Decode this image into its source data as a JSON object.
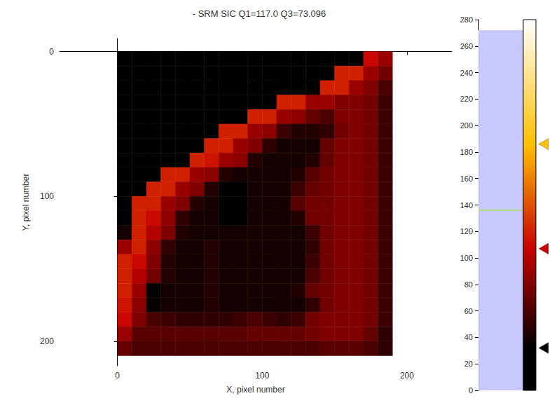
{
  "chart_data": {
    "type": "heatmap",
    "title": "- SRM SIC Q1=117.0 Q3=73.096",
    "x_label": "X, pixel number",
    "y_label": "Y, pixel number",
    "xlim": [
      -40,
      231
    ],
    "xticks": [
      0,
      100,
      200
    ],
    "ylim": [
      -9,
      217
    ],
    "yticks": [
      0,
      100,
      200
    ],
    "grid": false,
    "x": [
      5,
      15,
      25,
      35,
      45,
      55,
      65,
      75,
      85,
      95,
      105,
      115,
      125,
      135,
      145,
      155,
      165,
      175,
      185
    ],
    "y": [
      5,
      15,
      25,
      35,
      45,
      55,
      65,
      75,
      85,
      95,
      105,
      115,
      125,
      135,
      145,
      155,
      165,
      175,
      185,
      195,
      205
    ],
    "values": [
      [
        0,
        0,
        0,
        0,
        0,
        0,
        0,
        0,
        0,
        0,
        0,
        0,
        0,
        0,
        0,
        0,
        0,
        110,
        90
      ],
      [
        0,
        0,
        0,
        0,
        0,
        0,
        0,
        0,
        0,
        0,
        0,
        0,
        0,
        0,
        0,
        120,
        120,
        90,
        75
      ],
      [
        0,
        0,
        0,
        0,
        0,
        0,
        0,
        0,
        0,
        0,
        0,
        0,
        0,
        0,
        120,
        120,
        90,
        80,
        60
      ],
      [
        0,
        0,
        0,
        0,
        0,
        0,
        0,
        0,
        0,
        0,
        0,
        120,
        120,
        90,
        90,
        80,
        80,
        75,
        55
      ],
      [
        0,
        0,
        0,
        0,
        0,
        0,
        0,
        0,
        0,
        120,
        120,
        90,
        85,
        70,
        60,
        80,
        80,
        75,
        55
      ],
      [
        0,
        0,
        0,
        0,
        0,
        0,
        0,
        120,
        120,
        90,
        85,
        55,
        45,
        45,
        50,
        75,
        80,
        75,
        55
      ],
      [
        0,
        0,
        0,
        0,
        0,
        0,
        120,
        120,
        90,
        80,
        50,
        40,
        40,
        40,
        70,
        80,
        80,
        75,
        55
      ],
      [
        0,
        0,
        0,
        0,
        0,
        120,
        115,
        90,
        85,
        45,
        40,
        40,
        40,
        45,
        70,
        80,
        80,
        75,
        55
      ],
      [
        0,
        0,
        0,
        120,
        120,
        90,
        85,
        45,
        40,
        40,
        40,
        40,
        45,
        65,
        75,
        80,
        80,
        75,
        55
      ],
      [
        0,
        0,
        120,
        120,
        90,
        80,
        45,
        25,
        25,
        40,
        40,
        40,
        55,
        70,
        75,
        80,
        80,
        75,
        55
      ],
      [
        0,
        120,
        120,
        90,
        80,
        45,
        40,
        22,
        22,
        40,
        40,
        40,
        65,
        75,
        75,
        80,
        80,
        75,
        55
      ],
      [
        0,
        120,
        110,
        85,
        50,
        40,
        40,
        25,
        25,
        40,
        40,
        40,
        45,
        75,
        75,
        80,
        80,
        75,
        55
      ],
      [
        40,
        120,
        100,
        80,
        45,
        40,
        40,
        40,
        40,
        40,
        40,
        40,
        40,
        55,
        75,
        80,
        80,
        75,
        55
      ],
      [
        90,
        120,
        85,
        50,
        40,
        40,
        45,
        40,
        40,
        40,
        40,
        40,
        40,
        50,
        75,
        80,
        80,
        75,
        55
      ],
      [
        120,
        110,
        80,
        45,
        40,
        40,
        45,
        40,
        40,
        40,
        40,
        40,
        40,
        55,
        75,
        80,
        80,
        75,
        55
      ],
      [
        120,
        100,
        75,
        45,
        40,
        40,
        45,
        40,
        40,
        40,
        40,
        40,
        40,
        60,
        75,
        80,
        80,
        75,
        55
      ],
      [
        120,
        90,
        30,
        40,
        40,
        40,
        45,
        40,
        40,
        40,
        40,
        40,
        45,
        70,
        75,
        80,
        80,
        75,
        55
      ],
      [
        115,
        85,
        35,
        40,
        40,
        40,
        45,
        40,
        40,
        40,
        40,
        40,
        40,
        50,
        75,
        80,
        80,
        75,
        55
      ],
      [
        110,
        80,
        60,
        55,
        50,
        50,
        50,
        50,
        55,
        60,
        55,
        50,
        55,
        75,
        80,
        80,
        80,
        75,
        55
      ],
      [
        90,
        65,
        65,
        65,
        65,
        65,
        65,
        65,
        65,
        70,
        70,
        70,
        70,
        75,
        80,
        80,
        80,
        70,
        50
      ],
      [
        70,
        60,
        60,
        60,
        60,
        60,
        60,
        60,
        60,
        60,
        60,
        60,
        60,
        60,
        65,
        65,
        65,
        60,
        50
      ]
    ],
    "colorbar": {
      "range": [
        0,
        280
      ],
      "ticks": [
        0,
        20,
        40,
        60,
        80,
        100,
        120,
        140,
        160,
        180,
        200,
        220,
        240,
        260,
        280
      ],
      "stops": [
        {
          "value": 0,
          "color": "#000000"
        },
        {
          "value": 32,
          "color": "#000000"
        },
        {
          "value": 107,
          "color": "#c80000"
        },
        {
          "value": 186,
          "color": "#ffc000"
        },
        {
          "value": 280,
          "color": "#ffffff"
        }
      ],
      "markers": [
        32,
        107,
        186
      ],
      "histogram_range": [
        0,
        272
      ],
      "level": 136
    }
  }
}
